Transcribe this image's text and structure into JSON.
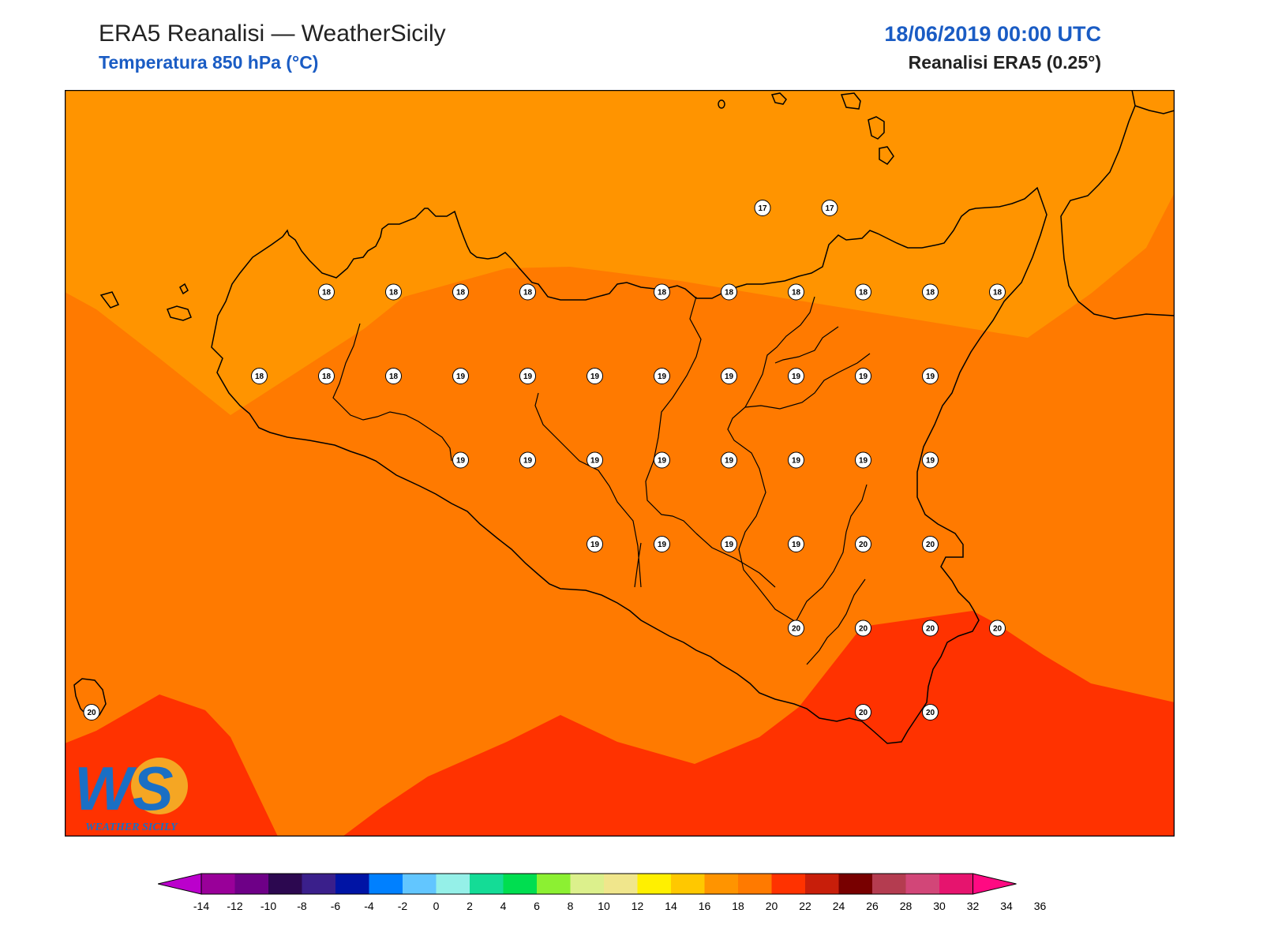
{
  "header": {
    "title": "ERA5 Reanalisi — WeatherSicily",
    "subtitle": "Temperatura 850 hPa (°C)",
    "datetime": "18/06/2019 00:00 UTC",
    "source": "Reanalisi ERA5 (0.25°)"
  },
  "logo": {
    "mark": "WS",
    "text": "WEATHER SICILY"
  },
  "zones": {
    "c16": "#ff9400",
    "c18": "#ff7a00",
    "c20": "#ff3200"
  },
  "stations": [
    {
      "v": "17",
      "lon": 15.2,
      "lat": 38.3
    },
    {
      "v": "17",
      "lon": 15.6,
      "lat": 38.3
    },
    {
      "v": "18",
      "lon": 12.6,
      "lat": 38.0
    },
    {
      "v": "18",
      "lon": 13.0,
      "lat": 38.0
    },
    {
      "v": "18",
      "lon": 13.4,
      "lat": 38.0
    },
    {
      "v": "18",
      "lon": 13.8,
      "lat": 38.0
    },
    {
      "v": "18",
      "lon": 14.6,
      "lat": 38.0
    },
    {
      "v": "18",
      "lon": 15.0,
      "lat": 38.0
    },
    {
      "v": "18",
      "lon": 15.4,
      "lat": 38.0
    },
    {
      "v": "18",
      "lon": 15.8,
      "lat": 38.0
    },
    {
      "v": "18",
      "lon": 16.2,
      "lat": 38.0
    },
    {
      "v": "18",
      "lon": 16.6,
      "lat": 38.0
    },
    {
      "v": "18",
      "lon": 12.2,
      "lat": 37.7
    },
    {
      "v": "18",
      "lon": 12.6,
      "lat": 37.7
    },
    {
      "v": "18",
      "lon": 13.0,
      "lat": 37.7
    },
    {
      "v": "19",
      "lon": 13.4,
      "lat": 37.7
    },
    {
      "v": "19",
      "lon": 13.8,
      "lat": 37.7
    },
    {
      "v": "19",
      "lon": 14.2,
      "lat": 37.7
    },
    {
      "v": "19",
      "lon": 14.6,
      "lat": 37.7
    },
    {
      "v": "19",
      "lon": 15.0,
      "lat": 37.7
    },
    {
      "v": "19",
      "lon": 15.4,
      "lat": 37.7
    },
    {
      "v": "19",
      "lon": 15.8,
      "lat": 37.7
    },
    {
      "v": "19",
      "lon": 16.2,
      "lat": 37.7
    },
    {
      "v": "19",
      "lon": 13.4,
      "lat": 37.4
    },
    {
      "v": "19",
      "lon": 13.8,
      "lat": 37.4
    },
    {
      "v": "19",
      "lon": 14.2,
      "lat": 37.4
    },
    {
      "v": "19",
      "lon": 14.6,
      "lat": 37.4
    },
    {
      "v": "19",
      "lon": 15.0,
      "lat": 37.4
    },
    {
      "v": "19",
      "lon": 15.4,
      "lat": 37.4
    },
    {
      "v": "19",
      "lon": 15.8,
      "lat": 37.4
    },
    {
      "v": "19",
      "lon": 16.2,
      "lat": 37.4
    },
    {
      "v": "19",
      "lon": 14.2,
      "lat": 37.1
    },
    {
      "v": "19",
      "lon": 14.6,
      "lat": 37.1
    },
    {
      "v": "19",
      "lon": 15.0,
      "lat": 37.1
    },
    {
      "v": "19",
      "lon": 15.4,
      "lat": 37.1
    },
    {
      "v": "20",
      "lon": 15.8,
      "lat": 37.1
    },
    {
      "v": "20",
      "lon": 16.2,
      "lat": 37.1
    },
    {
      "v": "20",
      "lon": 15.4,
      "lat": 36.8
    },
    {
      "v": "20",
      "lon": 15.8,
      "lat": 36.8
    },
    {
      "v": "20",
      "lon": 16.2,
      "lat": 36.8
    },
    {
      "v": "20",
      "lon": 16.6,
      "lat": 36.8
    },
    {
      "v": "20",
      "lon": 11.2,
      "lat": 36.5
    },
    {
      "v": "20",
      "lon": 15.8,
      "lat": 36.5
    },
    {
      "v": "20",
      "lon": 16.2,
      "lat": 36.5
    }
  ],
  "colorbar": {
    "colors": [
      "#bb00cc",
      "#990099",
      "#6e0087",
      "#2c0850",
      "#3a1f8b",
      "#0014a5",
      "#0080ff",
      "#62c6ff",
      "#95f0e8",
      "#14dc96",
      "#00de50",
      "#8cf032",
      "#dcf08c",
      "#f0e68c",
      "#fff000",
      "#ffc800",
      "#ff9400",
      "#ff7a00",
      "#ff3200",
      "#c81e0a",
      "#780000",
      "#b43c50",
      "#d24678",
      "#e6146e",
      "#ff0a82"
    ],
    "ticks": [
      "-14",
      "-12",
      "-10",
      "-8",
      "-6",
      "-4",
      "-2",
      "0",
      "2",
      "4",
      "6",
      "8",
      "10",
      "12",
      "14",
      "16",
      "18",
      "20",
      "22",
      "24",
      "26",
      "28",
      "30",
      "32",
      "34",
      "36"
    ]
  }
}
